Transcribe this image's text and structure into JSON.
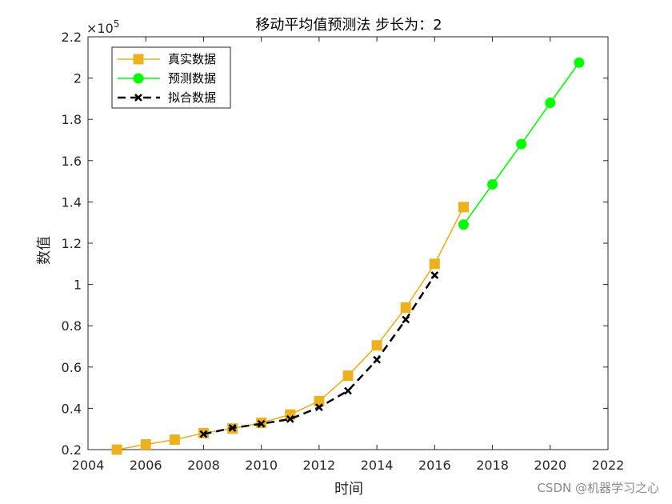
{
  "chart_data": {
    "type": "line",
    "title": "移动平均值预测法  步长为：2",
    "xlabel": "时间",
    "ylabel": "数值",
    "xlim": [
      2004,
      2022
    ],
    "ylim": [
      20000,
      220000
    ],
    "x_ticks": [
      2004,
      2006,
      2008,
      2010,
      2012,
      2014,
      2016,
      2018,
      2020,
      2022
    ],
    "y_ticks": [
      0.2,
      0.4,
      0.6,
      0.8,
      1,
      1.2,
      1.4,
      1.6,
      1.8,
      2,
      2.2
    ],
    "y_exponent_label": "×10",
    "y_exponent_power": "5",
    "grid": false,
    "legend_position": "top-left",
    "series": [
      {
        "name": "真实数据",
        "color": "#EDB120",
        "marker": "square",
        "line": "solid",
        "x": [
          2005,
          2006,
          2007,
          2008,
          2009,
          2010,
          2011,
          2012,
          2013,
          2014,
          2015,
          2016,
          2017
        ],
        "y": [
          20000,
          22500,
          24800,
          28000,
          30200,
          33000,
          37000,
          43500,
          55800,
          70500,
          88800,
          110000,
          137500
        ]
      },
      {
        "name": "预测数据",
        "color": "#00FF00",
        "marker": "circle",
        "line": "solid",
        "x": [
          2017,
          2018,
          2019,
          2020,
          2021
        ],
        "y": [
          129000,
          148500,
          168000,
          188000,
          207500
        ]
      },
      {
        "name": "拟合数据",
        "color": "#000000",
        "marker": "x",
        "line": "dashed",
        "x": [
          2008,
          2009,
          2010,
          2011,
          2012,
          2013,
          2014,
          2015,
          2016
        ],
        "y": [
          27500,
          30500,
          32500,
          34800,
          40500,
          48500,
          63500,
          83000,
          104500
        ]
      }
    ]
  },
  "watermark": "CSDN @机器学习之心"
}
